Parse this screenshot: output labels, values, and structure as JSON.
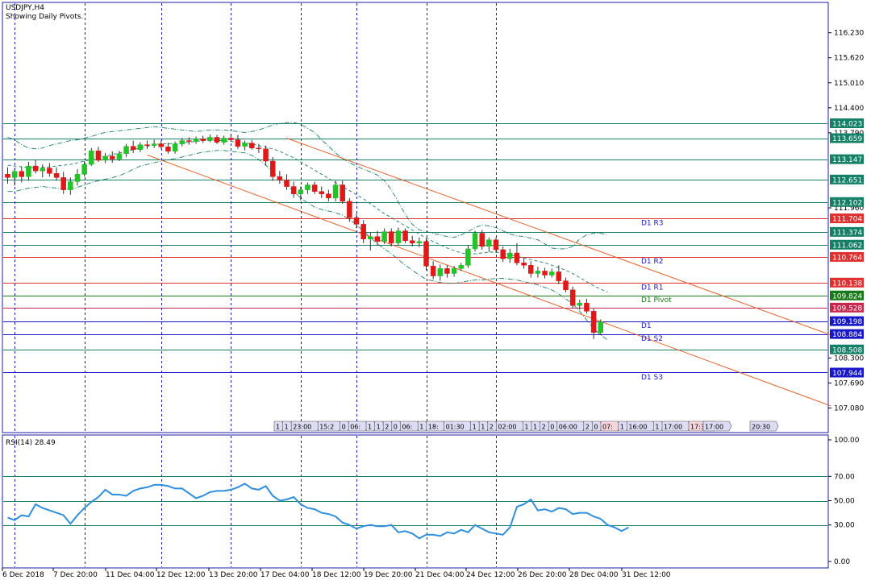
{
  "header": {
    "symbol": "USDJPY,H4",
    "subtitle": "Showing Daily Pivots."
  },
  "rsi_panel": {
    "title": "RSI(14) 28.49"
  },
  "colors": {
    "frame": "#1c1ca8",
    "bull": "#22c428",
    "bear": "#e01818",
    "teal": "#148066",
    "red_level": "#e03030",
    "channel": "#e8622c",
    "rsi": "#2f8fe0",
    "vsep": "#1c1cd0"
  },
  "chart_data": {
    "type": "line",
    "title": "USDJPY,H4",
    "price_axis": {
      "ylim": [
        106.5,
        116.95
      ],
      "tick_labels": [
        "116.230",
        "115.620",
        "115.010",
        "114.400",
        "113.790",
        "111.960",
        "108.300",
        "107.690",
        "107.080"
      ]
    },
    "price_levels": [
      {
        "label": "114.023",
        "value": 114.023,
        "color": "#148066"
      },
      {
        "label": "113.659",
        "value": 113.659,
        "color": "#148066"
      },
      {
        "label": "113.147",
        "value": 113.147,
        "color": "#148066"
      },
      {
        "label": "112.651",
        "value": 112.651,
        "color": "#148066"
      },
      {
        "label": "112.102",
        "value": 112.102,
        "color": "#148066"
      },
      {
        "label": "111.704",
        "value": 111.704,
        "color": "#e03030"
      },
      {
        "label": "111.374",
        "value": 111.374,
        "color": "#148066"
      },
      {
        "label": "111.062",
        "value": 111.062,
        "color": "#148066"
      },
      {
        "label": "110.764",
        "value": 110.764,
        "color": "#e03030"
      },
      {
        "label": "110.138",
        "value": 110.138,
        "color": "#e03030"
      },
      {
        "label": "109.824",
        "value": 109.824,
        "color": "#1a7a1a"
      },
      {
        "label": "109.528",
        "value": 109.528,
        "color": "#c82850"
      },
      {
        "label": "109.198",
        "value": 109.198,
        "color": "#1818c8"
      },
      {
        "label": "108.884",
        "value": 108.884,
        "color": "#1818c8"
      },
      {
        "label": "108.508",
        "value": 108.508,
        "color": "#148066"
      },
      {
        "label": "107.944",
        "value": 107.944,
        "color": "#1818c8"
      }
    ],
    "pivot_labels": [
      {
        "text": "D1  R3",
        "value": 111.6,
        "color": "#1818c8"
      },
      {
        "text": "D1  R2",
        "value": 110.66,
        "color": "#1818c8"
      },
      {
        "text": "D1  R1",
        "value": 110.03,
        "color": "#1818c8"
      },
      {
        "text": "D1  Pivot",
        "value": 109.72,
        "color": "#1a7a1a"
      },
      {
        "text": "D1",
        "value": 109.09,
        "color": "#1818c8"
      },
      {
        "text": "D1  S2",
        "value": 108.78,
        "color": "#1818c8"
      },
      {
        "text": "D1  S3",
        "value": 107.84,
        "color": "#1818c8"
      }
    ],
    "x_axis_labels": [
      "6 Dec 2018",
      "7 Dec 20:00",
      "11 Dec 04:00",
      "12 Dec 12:00",
      "13 Dec 20:00",
      "17 Dec 04:00",
      "18 Dec 12:00",
      "19 Dec 20:00",
      "21 Dec 04:00",
      "24 Dec 12:00",
      "26 Dec 20:00",
      "28 Dec 04:00",
      "31 Dec 12:00"
    ],
    "day_separators": [
      1,
      11,
      22,
      32,
      42,
      50,
      60,
      70
    ],
    "candles": [
      {
        "o": 112.78,
        "h": 112.95,
        "l": 112.55,
        "c": 112.7
      },
      {
        "o": 112.7,
        "h": 112.92,
        "l": 112.5,
        "c": 112.85
      },
      {
        "o": 112.85,
        "h": 112.97,
        "l": 112.58,
        "c": 112.72
      },
      {
        "o": 112.72,
        "h": 113.08,
        "l": 112.62,
        "c": 112.98
      },
      {
        "o": 112.98,
        "h": 113.12,
        "l": 112.8,
        "c": 112.86
      },
      {
        "o": 112.86,
        "h": 113.02,
        "l": 112.7,
        "c": 112.93
      },
      {
        "o": 112.93,
        "h": 113.05,
        "l": 112.72,
        "c": 112.8
      },
      {
        "o": 112.8,
        "h": 112.95,
        "l": 112.62,
        "c": 112.7
      },
      {
        "o": 112.7,
        "h": 112.84,
        "l": 112.3,
        "c": 112.4
      },
      {
        "o": 112.4,
        "h": 112.7,
        "l": 112.28,
        "c": 112.6
      },
      {
        "o": 112.6,
        "h": 112.9,
        "l": 112.5,
        "c": 112.78
      },
      {
        "o": 112.78,
        "h": 113.1,
        "l": 112.72,
        "c": 113.02
      },
      {
        "o": 113.02,
        "h": 113.42,
        "l": 112.98,
        "c": 113.35
      },
      {
        "o": 113.35,
        "h": 113.45,
        "l": 113.08,
        "c": 113.12
      },
      {
        "o": 113.12,
        "h": 113.3,
        "l": 113.05,
        "c": 113.22
      },
      {
        "o": 113.22,
        "h": 113.34,
        "l": 113.06,
        "c": 113.15
      },
      {
        "o": 113.15,
        "h": 113.35,
        "l": 113.1,
        "c": 113.28
      },
      {
        "o": 113.28,
        "h": 113.52,
        "l": 113.2,
        "c": 113.46
      },
      {
        "o": 113.46,
        "h": 113.6,
        "l": 113.3,
        "c": 113.38
      },
      {
        "o": 113.38,
        "h": 113.56,
        "l": 113.32,
        "c": 113.5
      },
      {
        "o": 113.5,
        "h": 113.6,
        "l": 113.4,
        "c": 113.48
      },
      {
        "o": 113.48,
        "h": 113.62,
        "l": 113.42,
        "c": 113.52
      },
      {
        "o": 113.52,
        "h": 113.6,
        "l": 113.4,
        "c": 113.45
      },
      {
        "o": 113.45,
        "h": 113.55,
        "l": 113.28,
        "c": 113.34
      },
      {
        "o": 113.34,
        "h": 113.58,
        "l": 113.28,
        "c": 113.52
      },
      {
        "o": 113.52,
        "h": 113.66,
        "l": 113.46,
        "c": 113.6
      },
      {
        "o": 113.6,
        "h": 113.68,
        "l": 113.5,
        "c": 113.58
      },
      {
        "o": 113.58,
        "h": 113.7,
        "l": 113.52,
        "c": 113.64
      },
      {
        "o": 113.64,
        "h": 113.72,
        "l": 113.54,
        "c": 113.6
      },
      {
        "o": 113.6,
        "h": 113.75,
        "l": 113.56,
        "c": 113.68
      },
      {
        "o": 113.68,
        "h": 113.74,
        "l": 113.52,
        "c": 113.56
      },
      {
        "o": 113.56,
        "h": 113.72,
        "l": 113.5,
        "c": 113.66
      },
      {
        "o": 113.66,
        "h": 113.76,
        "l": 113.58,
        "c": 113.62
      },
      {
        "o": 113.62,
        "h": 113.74,
        "l": 113.4,
        "c": 113.46
      },
      {
        "o": 113.46,
        "h": 113.6,
        "l": 113.36,
        "c": 113.54
      },
      {
        "o": 113.54,
        "h": 113.62,
        "l": 113.38,
        "c": 113.42
      },
      {
        "o": 113.42,
        "h": 113.52,
        "l": 113.3,
        "c": 113.4
      },
      {
        "o": 113.4,
        "h": 113.48,
        "l": 113.0,
        "c": 113.1
      },
      {
        "o": 113.1,
        "h": 113.2,
        "l": 112.62,
        "c": 112.72
      },
      {
        "o": 112.72,
        "h": 112.86,
        "l": 112.55,
        "c": 112.64
      },
      {
        "o": 112.64,
        "h": 112.78,
        "l": 112.4,
        "c": 112.48
      },
      {
        "o": 112.48,
        "h": 112.6,
        "l": 112.2,
        "c": 112.3
      },
      {
        "o": 112.3,
        "h": 112.48,
        "l": 112.14,
        "c": 112.4
      },
      {
        "o": 112.4,
        "h": 112.58,
        "l": 112.3,
        "c": 112.52
      },
      {
        "o": 112.52,
        "h": 112.6,
        "l": 112.3,
        "c": 112.36
      },
      {
        "o": 112.36,
        "h": 112.48,
        "l": 112.2,
        "c": 112.3
      },
      {
        "o": 112.3,
        "h": 112.4,
        "l": 112.12,
        "c": 112.2
      },
      {
        "o": 112.2,
        "h": 112.62,
        "l": 112.12,
        "c": 112.52
      },
      {
        "o": 112.52,
        "h": 112.62,
        "l": 112.06,
        "c": 112.12
      },
      {
        "o": 112.12,
        "h": 112.2,
        "l": 111.62,
        "c": 111.72
      },
      {
        "o": 111.72,
        "h": 111.82,
        "l": 111.46,
        "c": 111.56
      },
      {
        "o": 111.56,
        "h": 111.66,
        "l": 111.1,
        "c": 111.2
      },
      {
        "o": 111.2,
        "h": 111.36,
        "l": 110.92,
        "c": 111.26
      },
      {
        "o": 111.26,
        "h": 111.4,
        "l": 111.04,
        "c": 111.14
      },
      {
        "o": 111.14,
        "h": 111.46,
        "l": 111.08,
        "c": 111.38
      },
      {
        "o": 111.38,
        "h": 111.46,
        "l": 111.02,
        "c": 111.1
      },
      {
        "o": 111.1,
        "h": 111.48,
        "l": 111.04,
        "c": 111.4
      },
      {
        "o": 111.4,
        "h": 111.46,
        "l": 111.1,
        "c": 111.16
      },
      {
        "o": 111.16,
        "h": 111.28,
        "l": 111.02,
        "c": 111.1
      },
      {
        "o": 111.1,
        "h": 111.24,
        "l": 111.0,
        "c": 111.14
      },
      {
        "o": 111.14,
        "h": 111.22,
        "l": 110.44,
        "c": 110.54
      },
      {
        "o": 110.54,
        "h": 110.66,
        "l": 110.22,
        "c": 110.3
      },
      {
        "o": 110.3,
        "h": 110.58,
        "l": 110.18,
        "c": 110.48
      },
      {
        "o": 110.48,
        "h": 110.56,
        "l": 110.26,
        "c": 110.36
      },
      {
        "o": 110.36,
        "h": 110.54,
        "l": 110.28,
        "c": 110.48
      },
      {
        "o": 110.48,
        "h": 110.62,
        "l": 110.42,
        "c": 110.56
      },
      {
        "o": 110.56,
        "h": 111.04,
        "l": 110.5,
        "c": 110.96
      },
      {
        "o": 110.96,
        "h": 111.4,
        "l": 110.9,
        "c": 111.34
      },
      {
        "o": 111.34,
        "h": 111.42,
        "l": 110.94,
        "c": 111.02
      },
      {
        "o": 111.02,
        "h": 111.24,
        "l": 110.88,
        "c": 111.18
      },
      {
        "o": 111.18,
        "h": 111.24,
        "l": 110.86,
        "c": 110.94
      },
      {
        "o": 110.94,
        "h": 111.02,
        "l": 110.64,
        "c": 110.72
      },
      {
        "o": 110.72,
        "h": 110.96,
        "l": 110.62,
        "c": 110.86
      },
      {
        "o": 110.86,
        "h": 111.1,
        "l": 110.56,
        "c": 110.62
      },
      {
        "o": 110.62,
        "h": 110.74,
        "l": 110.48,
        "c": 110.56
      },
      {
        "o": 110.56,
        "h": 110.66,
        "l": 110.26,
        "c": 110.36
      },
      {
        "o": 110.36,
        "h": 110.52,
        "l": 110.26,
        "c": 110.42
      },
      {
        "o": 110.42,
        "h": 110.5,
        "l": 110.24,
        "c": 110.32
      },
      {
        "o": 110.32,
        "h": 110.48,
        "l": 110.26,
        "c": 110.4
      },
      {
        "o": 110.4,
        "h": 110.56,
        "l": 110.1,
        "c": 110.18
      },
      {
        "o": 110.18,
        "h": 110.26,
        "l": 109.9,
        "c": 109.96
      },
      {
        "o": 109.96,
        "h": 110.04,
        "l": 109.5,
        "c": 109.58
      },
      {
        "o": 109.58,
        "h": 109.72,
        "l": 109.48,
        "c": 109.64
      },
      {
        "o": 109.64,
        "h": 109.74,
        "l": 109.38,
        "c": 109.44
      },
      {
        "o": 109.44,
        "h": 109.5,
        "l": 108.76,
        "c": 108.92
      },
      {
        "o": 108.92,
        "h": 109.24,
        "l": 108.86,
        "c": 109.18
      }
    ],
    "bollinger": {
      "upper": [
        113.68,
        113.62,
        113.5,
        113.42,
        113.4,
        113.42,
        113.48,
        113.52,
        113.56,
        113.6,
        113.62,
        113.66,
        113.7,
        113.76,
        113.8,
        113.82,
        113.84,
        113.86,
        113.88,
        113.9,
        113.92,
        113.94,
        113.92,
        113.9,
        113.88,
        113.86,
        113.84,
        113.82,
        113.84,
        113.86,
        113.86,
        113.86,
        113.84,
        113.82,
        113.8,
        113.82,
        113.86,
        113.92,
        113.98,
        114.02,
        114.04,
        114.04,
        114.0,
        113.9,
        113.8,
        113.62,
        113.46,
        113.3,
        113.16,
        113.06,
        112.98,
        112.9,
        112.84,
        112.76,
        112.62,
        112.4,
        112.1,
        111.8,
        111.56,
        111.42,
        111.38,
        111.34,
        111.3,
        111.26,
        111.24,
        111.3,
        111.38,
        111.48,
        111.54,
        111.52,
        111.48,
        111.4,
        111.32,
        111.28,
        111.26,
        111.22,
        111.18,
        111.08,
        110.98,
        110.96,
        110.96,
        111.02,
        111.2,
        111.3,
        111.34,
        111.34,
        111.3
      ],
      "middle": [
        113.0,
        112.98,
        112.96,
        112.94,
        112.94,
        112.95,
        112.96,
        112.98,
        113.0,
        113.02,
        113.06,
        113.1,
        113.14,
        113.18,
        113.22,
        113.26,
        113.3,
        113.34,
        113.38,
        113.42,
        113.46,
        113.5,
        113.52,
        113.52,
        113.52,
        113.54,
        113.56,
        113.58,
        113.6,
        113.6,
        113.6,
        113.6,
        113.58,
        113.56,
        113.54,
        113.52,
        113.48,
        113.44,
        113.4,
        113.34,
        113.26,
        113.18,
        113.08,
        112.98,
        112.88,
        112.78,
        112.68,
        112.58,
        112.48,
        112.38,
        112.28,
        112.18,
        112.06,
        111.94,
        111.82,
        111.72,
        111.62,
        111.52,
        111.42,
        111.32,
        111.22,
        111.14,
        111.06,
        110.98,
        110.92,
        110.86,
        110.84,
        110.84,
        110.86,
        110.88,
        110.88,
        110.86,
        110.82,
        110.78,
        110.74,
        110.7,
        110.66,
        110.62,
        110.56,
        110.5,
        110.44,
        110.36,
        110.26,
        110.16,
        110.06,
        109.98,
        109.9
      ],
      "lower": [
        112.36,
        112.36,
        112.4,
        112.44,
        112.46,
        112.48,
        112.46,
        112.44,
        112.42,
        112.42,
        112.46,
        112.52,
        112.58,
        112.62,
        112.66,
        112.7,
        112.74,
        112.82,
        112.9,
        112.98,
        113.02,
        113.06,
        113.1,
        113.14,
        113.16,
        113.2,
        113.24,
        113.28,
        113.32,
        113.34,
        113.36,
        113.36,
        113.34,
        113.32,
        113.3,
        113.24,
        113.14,
        113.0,
        112.84,
        112.68,
        112.52,
        112.36,
        112.2,
        112.08,
        111.98,
        111.92,
        111.88,
        111.84,
        111.78,
        111.68,
        111.54,
        111.4,
        111.24,
        111.08,
        110.96,
        110.84,
        110.7,
        110.56,
        110.44,
        110.32,
        110.22,
        110.18,
        110.14,
        110.12,
        110.12,
        110.14,
        110.18,
        110.2,
        110.2,
        110.22,
        110.24,
        110.24,
        110.22,
        110.2,
        110.16,
        110.12,
        110.08,
        110.02,
        109.96,
        109.86,
        109.74,
        109.62,
        109.44,
        109.22,
        109.02,
        108.86,
        108.74
      ]
    },
    "channel_lines": [
      {
        "from_index": 20,
        "from_value": 113.25,
        "to_index": 118,
        "to_value": 107.13
      },
      {
        "from_index": 40,
        "from_value": 113.66,
        "to_index": 118,
        "to_value": 108.86
      }
    ],
    "events": [
      "1",
      "1",
      "23:00",
      "15:2",
      "0",
      "06:",
      "1",
      "1",
      "2",
      "0",
      "06:",
      "1",
      "18:",
      "01:30",
      "1",
      "1",
      "2",
      "02:00",
      "1",
      "1",
      "2",
      "0",
      "06:00",
      "2",
      "0",
      "07:",
      "1",
      "16:00",
      "1",
      "17:00",
      "17:30",
      "17:00",
      "20:30"
    ],
    "rsi": {
      "ylim": [
        0,
        100
      ],
      "tick_labels": [
        "100.00",
        "70.00",
        "50.00",
        "30.00",
        "0.00"
      ],
      "levels": [
        70,
        50,
        30
      ],
      "values": [
        36,
        34,
        38,
        37,
        47,
        44,
        42,
        40,
        38,
        31,
        38,
        44,
        49,
        53,
        59,
        55,
        55,
        54,
        58,
        60,
        61,
        63,
        63,
        62,
        60,
        60,
        56,
        52,
        54,
        57,
        58,
        58,
        59,
        61,
        64,
        60,
        59,
        62,
        54,
        50,
        51,
        53,
        47,
        44,
        43,
        40,
        39,
        37,
        32,
        30,
        27,
        29,
        30,
        29,
        29,
        30,
        24,
        25,
        23,
        19,
        22,
        22,
        21,
        24,
        23,
        26,
        24,
        30,
        27,
        24,
        23,
        22,
        28,
        45,
        47,
        51,
        42,
        43,
        41,
        44,
        43,
        39,
        40,
        40,
        37,
        35,
        30,
        28,
        25,
        28
      ],
      "last_value": 28.49
    }
  }
}
